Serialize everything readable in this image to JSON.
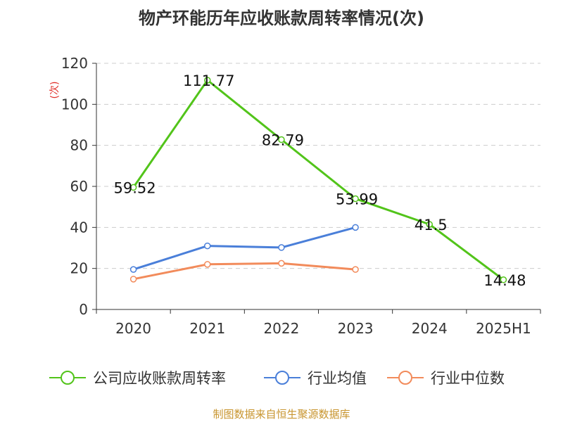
{
  "chart_data": {
    "type": "line",
    "title": "物产环能历年应收账款周转率情况(次)",
    "ylabel": "(次)",
    "categories": [
      "2020",
      "2021",
      "2022",
      "2023",
      "2024",
      "2025H1"
    ],
    "ylim": [
      0,
      120
    ],
    "yticks": [
      0,
      20,
      40,
      60,
      80,
      100,
      120
    ],
    "grid": true,
    "legend_position": "bottom",
    "series": [
      {
        "name": "公司应收账款周转率",
        "color": "#52c41a",
        "values": [
          59.52,
          111.77,
          82.79,
          53.99,
          41.5,
          14.48
        ],
        "labels": [
          "59.52",
          "111.77",
          "82.79",
          "53.99",
          "41.5",
          "14.48"
        ],
        "show_labels": true
      },
      {
        "name": "行业均值",
        "color": "#4a7fd9",
        "values": [
          19.5,
          31,
          30.2,
          40,
          null,
          null
        ],
        "show_labels": false
      },
      {
        "name": "行业中位数",
        "color": "#f28b5b",
        "values": [
          14.8,
          22,
          22.5,
          19.5,
          null,
          null
        ],
        "show_labels": false
      }
    ]
  },
  "source": "制图数据来自恒生聚源数据库"
}
